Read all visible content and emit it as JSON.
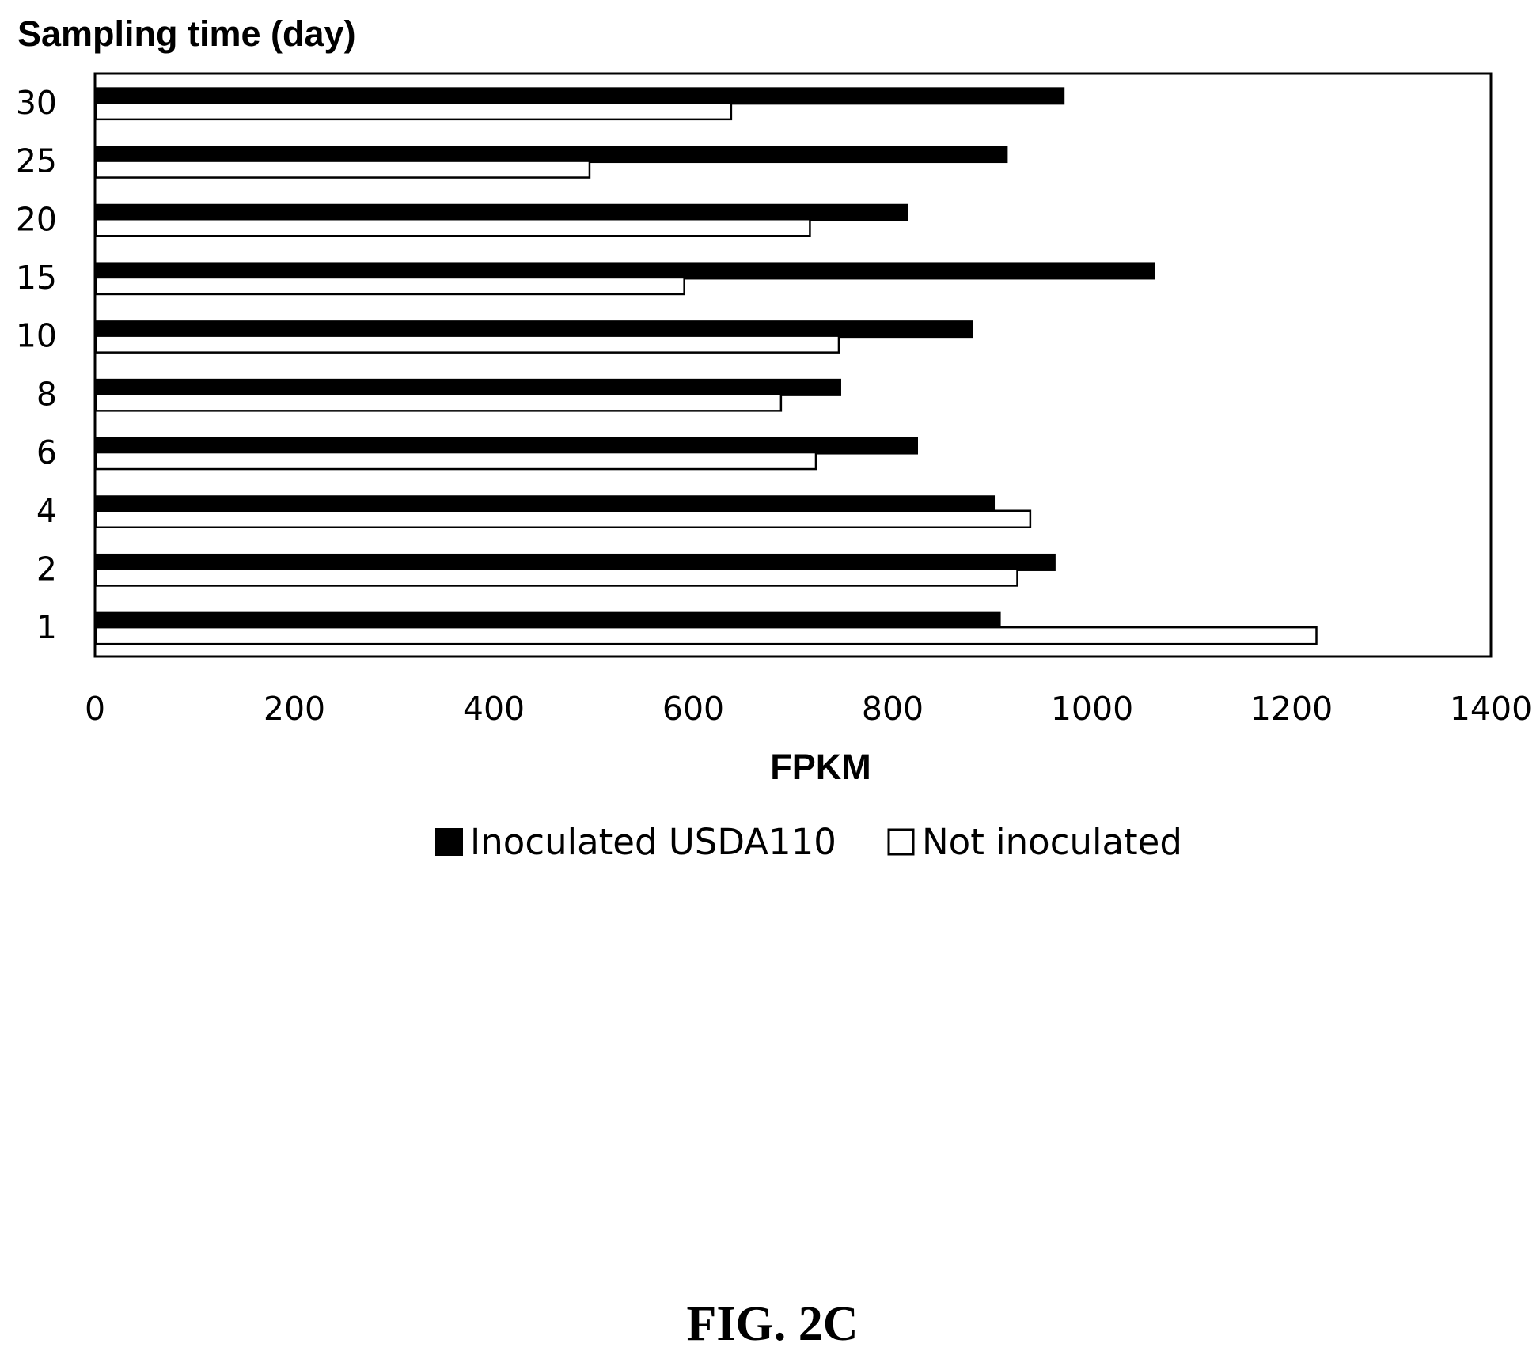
{
  "chart_data": {
    "type": "bar",
    "orientation": "horizontal",
    "ylabel": "Sampling time (day)",
    "xlabel": "FPKM",
    "categories": [
      "1",
      "2",
      "4",
      "6",
      "8",
      "10",
      "15",
      "20",
      "25",
      "30"
    ],
    "xlim": [
      0,
      1400
    ],
    "x_ticks": [
      "0",
      "200",
      "400",
      "600",
      "800",
      "1000",
      "1200",
      "1400"
    ],
    "series": [
      {
        "name": "Inoculated USDA110",
        "color": "#000000",
        "values": [
          908,
          963,
          902,
          825,
          748,
          880,
          1063,
          815,
          915,
          972
        ]
      },
      {
        "name": "Not inoculated",
        "color": "#ffffff",
        "values": [
          1225,
          925,
          938,
          723,
          688,
          746,
          591,
          717,
          496,
          638
        ]
      }
    ],
    "grid": false,
    "legend_position": "bottom"
  },
  "caption": "FIG. 2C"
}
